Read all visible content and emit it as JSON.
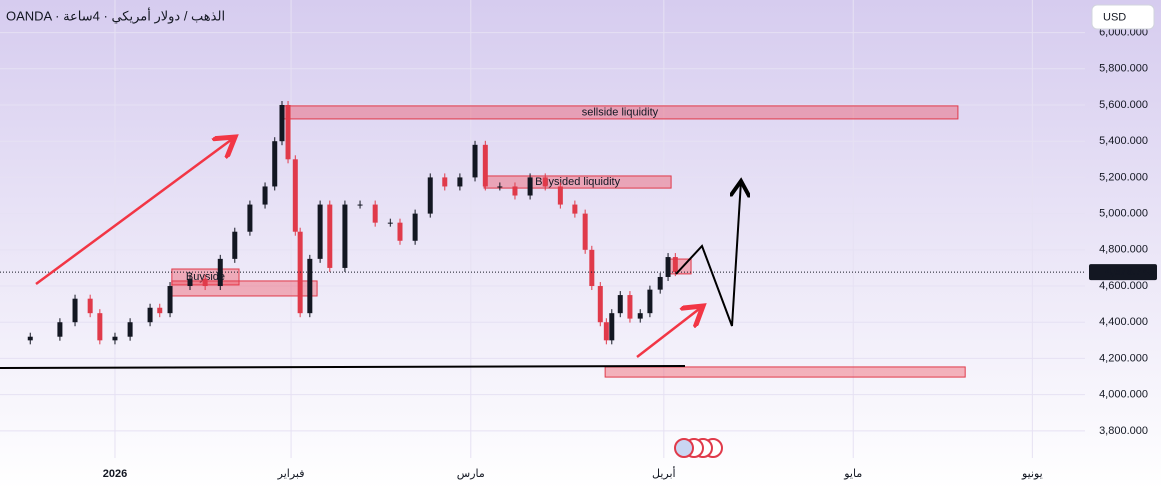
{
  "chart_data": {
    "type": "candlestick",
    "title": "OANDA · الذهب / دولار أمريكي · 4ساعة",
    "currency_button": "USD",
    "up_color": "#131722",
    "down_color": "#e03a4a",
    "x": [
      -19,
      -14,
      -9.1,
      -6.6,
      -4.1,
      -2.5,
      0,
      2.5,
      5.8,
      7.4,
      9.1,
      12.4,
      14.9,
      17.4,
      19.8,
      22.3,
      24.8,
      26.4,
      27.6,
      28.6,
      29.8,
      30.6,
      32.2,
      33.9,
      35.5,
      38,
      40.5,
      43,
      45.5,
      47.1,
      49.6,
      52.1,
      54.5,
      57,
      59.5,
      61.2,
      63.6,
      66.1,
      68.6,
      71.1,
      73.6,
      76,
      77.7,
      78.8,
      80.2,
      81.2,
      82.1,
      83.5,
      85.1,
      86.8,
      88.4,
      90.1,
      91.4,
      92.6
    ],
    "values": [
      4300000,
      4320000,
      4400000,
      4530000,
      4450000,
      4300000,
      4320000,
      4400000,
      4480000,
      4450000,
      4600000,
      4640000,
      4600000,
      4750000,
      4900000,
      5050000,
      5150000,
      5400000,
      5600000,
      5300000,
      4900000,
      4450000,
      4750000,
      5050000,
      4700000,
      5050000,
      5050000,
      4950000,
      4950000,
      4850000,
      5000000,
      5200000,
      5150000,
      5200000,
      5380000,
      5150000,
      5150000,
      5100000,
      5200000,
      5150000,
      5050000,
      5000000,
      4800000,
      4600000,
      4400000,
      4300000,
      4450000,
      4550000,
      4420000,
      4450000,
      4580000,
      4650000,
      4760000,
      4676745
    ],
    "last_price": {
      "value": 4676745,
      "label": "4,676.745"
    },
    "zones": [
      {
        "x0": 27.6,
        "x1": 139.3,
        "y0": 5523000,
        "y1": 5595000,
        "label": "sellside liquidity"
      },
      {
        "x0": 61,
        "x1": 91.9,
        "y0": 5141000,
        "y1": 5208000,
        "label": "Buysided liquidity"
      },
      {
        "x0": 9.4,
        "x1": 20.5,
        "y0": 4606000,
        "y1": 4694000,
        "label": "Buyside"
      },
      {
        "x0": 9.4,
        "x1": 33.4,
        "y0": 4545000,
        "y1": 4628000
      },
      {
        "x0": 91.2,
        "x1": 95.2,
        "y0": 4667000,
        "y1": 4749000
      },
      {
        "x0": 81,
        "x1": 140.5,
        "y0": 4097000,
        "y1": 4153000
      }
    ],
    "xlim": [
      -19,
      160.3
    ],
    "xticks": [
      {
        "value": 0,
        "label": "2026"
      },
      {
        "value": 29.1,
        "label": "فبراير"
      },
      {
        "value": 58.8,
        "label": "مارس"
      },
      {
        "value": 90.7,
        "label": "أبريل"
      },
      {
        "value": 122,
        "label": "مايو"
      },
      {
        "value": 151.6,
        "label": "يونيو"
      }
    ],
    "ylim": [
      3650000,
      6180000
    ],
    "yticks": [
      {
        "value": 3800000,
        "label": "3,800.000"
      },
      {
        "value": 4000000,
        "label": "4,000.000"
      },
      {
        "value": 4200000,
        "label": "4,200.000"
      },
      {
        "value": 4400000,
        "label": "4,400.000"
      },
      {
        "value": 4600000,
        "label": "4,600.000"
      },
      {
        "value": 4800000,
        "label": "4,800.000"
      },
      {
        "value": 5000000,
        "label": "5,000.000"
      },
      {
        "value": 5200000,
        "label": "5,200.000"
      },
      {
        "value": 5400000,
        "label": "5,400.000"
      },
      {
        "value": 5600000,
        "label": "5,600.000"
      },
      {
        "value": 5800000,
        "label": "5,800.000"
      },
      {
        "value": 6000000,
        "label": "6,000.000"
      }
    ],
    "grid": true
  }
}
